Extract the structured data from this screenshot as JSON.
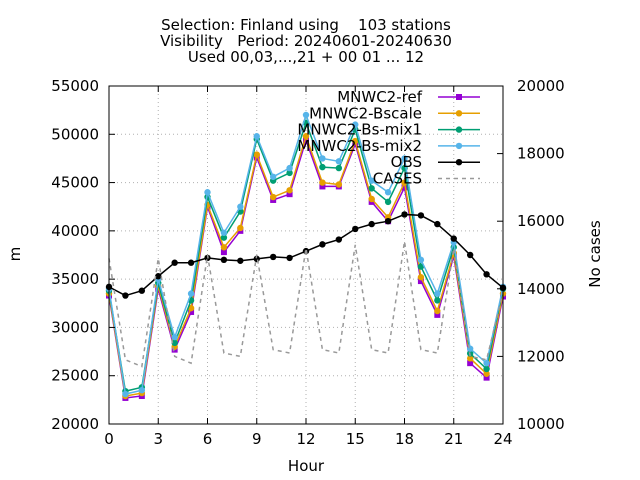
{
  "chart_data": {
    "type": "line",
    "title_lines": [
      "Selection: Finland using    103 stations",
      "Visibility   Period: 20240601-20240630",
      "Used 00,03,...,21 + 00 01 ... 12"
    ],
    "xlabel": "Hour",
    "ylabel": "m",
    "y2label": "No cases",
    "xlim": [
      0,
      24
    ],
    "ylim": [
      20000,
      55000
    ],
    "y2lim": [
      10000,
      20000
    ],
    "x_ticks": [
      "0",
      "3",
      "6",
      "9",
      "12",
      "15",
      "18",
      "21",
      "24"
    ],
    "y_ticks": [
      "20000",
      "25000",
      "30000",
      "35000",
      "40000",
      "45000",
      "50000",
      "55000"
    ],
    "y2_ticks": [
      "10000",
      "12000",
      "14000",
      "16000",
      "18000",
      "20000"
    ],
    "x": [
      0,
      1,
      2,
      3,
      4,
      5,
      6,
      7,
      8,
      9,
      10,
      11,
      12,
      13,
      14,
      15,
      16,
      17,
      18,
      19,
      20,
      21,
      22,
      23,
      24
    ],
    "legend_position": "top-right",
    "series": [
      {
        "name": "MNWC2-ref",
        "color": "#9400d3",
        "axis": "y",
        "style": "solid",
        "marker": "square",
        "values": [
          33300,
          22700,
          22900,
          34000,
          27700,
          31600,
          42500,
          37800,
          40000,
          47600,
          43200,
          43800,
          49400,
          44600,
          44600,
          49000,
          43000,
          41000,
          44500,
          34800,
          31300,
          37400,
          26300,
          24800,
          33200
        ]
      },
      {
        "name": "MNWC2-Bscale",
        "color": "#e69f00",
        "axis": "y",
        "style": "solid",
        "marker": "circle",
        "values": [
          33500,
          22900,
          23200,
          34300,
          28000,
          32000,
          42700,
          38300,
          40300,
          47900,
          43500,
          44200,
          49800,
          45000,
          44800,
          49300,
          43300,
          41400,
          45000,
          35200,
          31700,
          37700,
          26800,
          25200,
          33500
        ]
      },
      {
        "name": "MNWC2-Bs-mix1",
        "color": "#009e73",
        "axis": "y",
        "style": "solid",
        "marker": "circle",
        "values": [
          33800,
          23400,
          23800,
          34600,
          28400,
          32800,
          43500,
          39300,
          42000,
          49500,
          45200,
          46000,
          51200,
          46600,
          46500,
          50500,
          44400,
          43000,
          46500,
          36300,
          32800,
          38300,
          27300,
          25700,
          34000
        ]
      },
      {
        "name": "MNWC2-Bs-mix2",
        "color": "#56b4e9",
        "axis": "y",
        "style": "solid",
        "marker": "circle",
        "values": [
          34000,
          23100,
          23500,
          35000,
          29000,
          33500,
          44000,
          39800,
          42500,
          49800,
          45600,
          46500,
          52000,
          47500,
          47200,
          51000,
          45200,
          44000,
          47500,
          37000,
          33500,
          38800,
          27800,
          26300,
          34200
        ]
      },
      {
        "name": "OBS",
        "color": "#000000",
        "axis": "y",
        "style": "solid",
        "marker": "circle",
        "values": [
          34200,
          33300,
          33800,
          35300,
          36700,
          36700,
          37200,
          37000,
          36900,
          37100,
          37300,
          37200,
          37900,
          38600,
          39100,
          40200,
          40700,
          41000,
          41700,
          41600,
          40700,
          39200,
          37500,
          35500,
          34100
        ]
      },
      {
        "name": "CASES",
        "color": "#999999",
        "axis": "y2",
        "style": "dashed",
        "marker": "none",
        "values": [
          14900,
          11900,
          11700,
          14900,
          12000,
          11800,
          15000,
          12100,
          12000,
          15000,
          12200,
          12100,
          15200,
          12200,
          12100,
          15300,
          12200,
          12100,
          15400,
          12200,
          12100,
          15200,
          12000,
          11900,
          13900
        ]
      }
    ]
  }
}
